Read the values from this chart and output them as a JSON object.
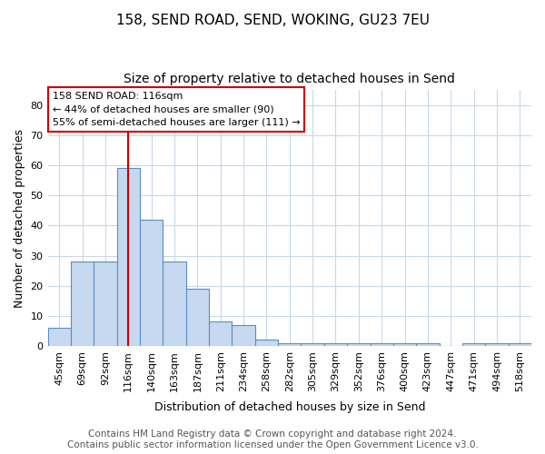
{
  "title": "158, SEND ROAD, SEND, WOKING, GU23 7EU",
  "subtitle": "Size of property relative to detached houses in Send",
  "xlabel": "Distribution of detached houses by size in Send",
  "ylabel": "Number of detached properties",
  "bin_labels": [
    "45sqm",
    "69sqm",
    "92sqm",
    "116sqm",
    "140sqm",
    "163sqm",
    "187sqm",
    "211sqm",
    "234sqm",
    "258sqm",
    "282sqm",
    "305sqm",
    "329sqm",
    "352sqm",
    "376sqm",
    "400sqm",
    "423sqm",
    "447sqm",
    "471sqm",
    "494sqm",
    "518sqm"
  ],
  "bar_heights": [
    6,
    28,
    28,
    59,
    42,
    28,
    19,
    8,
    7,
    2,
    1,
    1,
    1,
    1,
    1,
    1,
    1,
    0,
    1,
    1,
    1
  ],
  "bar_color": "#c6d9f0",
  "bar_edge_color": "#5a8dc5",
  "red_line_index": 3,
  "red_line_label": "158 SEND ROAD: 116sqm",
  "annotation_line1": "← 44% of detached houses are smaller (90)",
  "annotation_line2": "55% of semi-detached houses are larger (111) →",
  "annotation_box_color": "#ffffff",
  "annotation_box_edge": "#cc0000",
  "red_line_color": "#cc0000",
  "ylim": [
    0,
    85
  ],
  "yticks": [
    0,
    10,
    20,
    30,
    40,
    50,
    60,
    70,
    80
  ],
  "footer_line1": "Contains HM Land Registry data © Crown copyright and database right 2024.",
  "footer_line2": "Contains public sector information licensed under the Open Government Licence v3.0.",
  "title_fontsize": 11,
  "subtitle_fontsize": 10,
  "axis_label_fontsize": 9,
  "tick_fontsize": 8,
  "footer_fontsize": 7.5,
  "background_color": "#ffffff",
  "grid_color": "#c8d8e8"
}
